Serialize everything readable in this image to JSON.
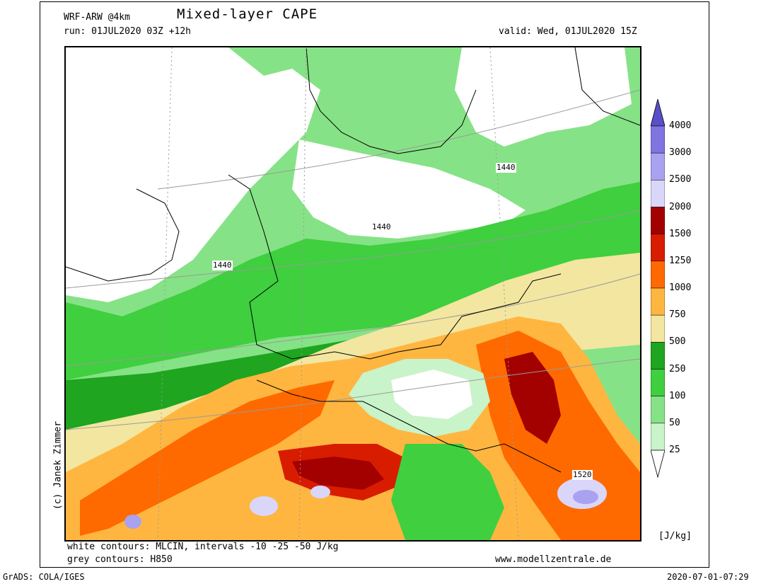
{
  "header": {
    "model": "WRF-ARW @4km",
    "title": "Mixed-layer CAPE",
    "run": "run: 01JUL2020 03Z +12h",
    "valid": "valid: Wed, 01JUL2020 15Z"
  },
  "map": {
    "contour_labels": [
      "1440",
      "1440",
      "1440",
      "1520"
    ]
  },
  "colorbar": {
    "labels": [
      "4000",
      "3000",
      "2500",
      "2000",
      "1500",
      "1250",
      "1000",
      "750",
      "500",
      "250",
      "100",
      "50",
      "25"
    ],
    "colors": [
      "#5a4fc8",
      "#7f74e0",
      "#a9a2f0",
      "#d9d6fa",
      "#a30000",
      "#d81c00",
      "#ff6a00",
      "#ffb640",
      "#f3e6a0",
      "#1fa51f",
      "#3fcf3f",
      "#86e286",
      "#c9f3c9"
    ],
    "unit": "[J/kg]"
  },
  "footer": {
    "line1": "white contours: MLCIN, intervals -10 -25 -50 J/kg",
    "line2": "grey contours: H850",
    "website": "www.modellzentrale.de",
    "credit": "(c) Janek Zimmer",
    "grads": "GrADS: COLA/IGES",
    "timestamp": "2020-07-01-07:29"
  }
}
